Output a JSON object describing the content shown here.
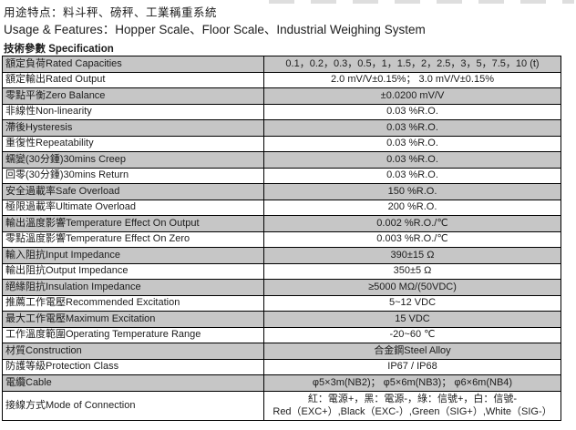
{
  "header": {
    "usage_zh": "用途特点：料斗秤、磅秤、工業稱重系統",
    "usage_en": "Usage & Features：Hopper Scale、Floor Scale、Industrial Weighing System",
    "spec_title": "技術參數 Specification"
  },
  "spec_table": {
    "rows": [
      {
        "label": "額定負荷Rated Capacities",
        "value": "0.1，0.2，0.3，0.5，1，1.5，2，2.5，3，5，7.5，10 (t)"
      },
      {
        "label": "額定輸出Rated Output",
        "value": "2.0 mV/V±0.15%； 3.0 mV/V±0.15%"
      },
      {
        "label": "零點平衡Zero Balance",
        "value": "±0.0200 mV/V"
      },
      {
        "label": "非線性Non-linearity",
        "value": "0.03 %R.O."
      },
      {
        "label": "滯後Hysteresis",
        "value": "0.03 %R.O."
      },
      {
        "label": "重復性Repeatability",
        "value": "0.03 %R.O."
      },
      {
        "label": "蠕變(30分鍾)30mins Creep",
        "value": "0.03 %R.O."
      },
      {
        "label": "回零(30分鍾)30mins Return",
        "value": "0.03 %R.O."
      },
      {
        "label": "安全過載率Safe Overload",
        "value": "150 %R.O."
      },
      {
        "label": "極限過載率Ultimate Overload",
        "value": "200 %R.O."
      },
      {
        "label": "輸出溫度影響Temperature Effect On Output",
        "value": "0.002 %R.O./℃"
      },
      {
        "label": "零點溫度影響Temperature Effect On Zero",
        "value": "0.003 %R.O./℃"
      },
      {
        "label": "輸入阻抗Input Impedance",
        "value": "390±15 Ω"
      },
      {
        "label": "輸出阻抗Output Impedance",
        "value": "350±5 Ω"
      },
      {
        "label": "絕緣阻抗Insulation Impedance",
        "value": "≥5000 MΩ/(50VDC)"
      },
      {
        "label": "推薦工作電壓Recommended Excitation",
        "value": "5~12 VDC"
      },
      {
        "label": "最大工作電壓Maximum Excitation",
        "value": "15 VDC"
      },
      {
        "label": "工作溫度範圍Operating Temperature Range",
        "value": "-20~60 ℃"
      },
      {
        "label": "材質Construction",
        "value": "合金鋼Steel Alloy"
      },
      {
        "label": "防護等級Protection Class",
        "value": "IP67 / IP68"
      },
      {
        "label": "電纜Cable",
        "value": "φ5×3m(NB2)； φ5×6m(NB3)； φ6×6m(NB4)"
      },
      {
        "label": "接線方式Mode of Connection",
        "value": "紅：電源+，黑：電源-，綠：信號+，白：信號-\nRed（EXC+）,Black（EXC-）,Green（SIG+）,White（SIG-）",
        "multiline": true
      }
    ]
  },
  "colors": {
    "row_shade": "#c6c6c6",
    "border": "#000000",
    "text": "#1c1c1c"
  }
}
